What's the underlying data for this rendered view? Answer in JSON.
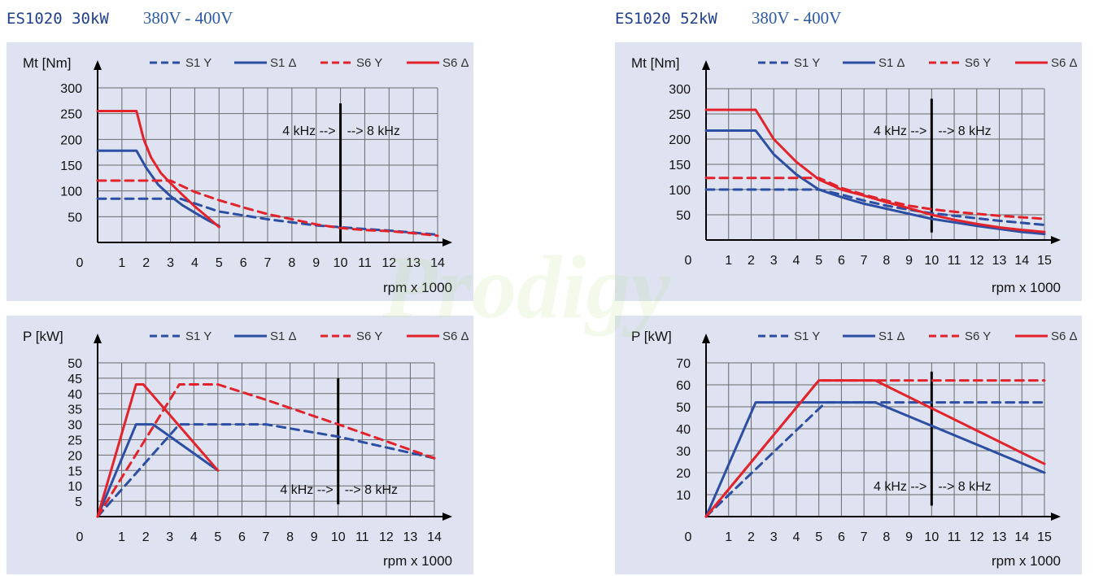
{
  "headings": [
    {
      "model": "ES1020  30kW",
      "voltage": "380V  -  400V"
    },
    {
      "model": "ES1020  52kW",
      "voltage": "380V  -  400V"
    }
  ],
  "watermark": "Prodigy",
  "colors": {
    "blue": "#2c4ea3",
    "red": "#e3232b",
    "panel": "#dfe3f1",
    "grid": "#6a6a6a",
    "axis": "#000000"
  },
  "chart_data": [
    {
      "type": "line",
      "ylabel": "Mt [Nm]",
      "xlabel": "rpm x 1000",
      "xticks": [
        "0",
        "1",
        "2",
        "3",
        "4",
        "5",
        "6",
        "7",
        "8",
        "9",
        "10",
        "11",
        "12",
        "13",
        "14"
      ],
      "yticks": [
        "50",
        "100",
        "150",
        "200",
        "250",
        "300"
      ],
      "xlim": [
        0,
        14
      ],
      "ylim": [
        0,
        300
      ],
      "xgrid_max": 14,
      "annotation": {
        "left": "4 kHz -->",
        "right": "--> 8 kHz",
        "x": 10,
        "y_top": 270,
        "y_bottom": 0,
        "label_y": 218
      },
      "legend": [
        "S1  Y",
        "S1  Δ",
        "S6  Y",
        "S6  Δ"
      ],
      "series": [
        {
          "name": "S1  Y",
          "color": "blue",
          "dash": true,
          "points": [
            [
              0,
              85
            ],
            [
              3.4,
              85
            ],
            [
              5,
              60
            ],
            [
              7,
              45
            ],
            [
              9,
              33
            ],
            [
              11,
              26
            ],
            [
              12,
              23
            ],
            [
              14,
              15
            ]
          ]
        },
        {
          "name": "S1  Δ",
          "color": "blue",
          "dash": false,
          "points": [
            [
              0,
              178
            ],
            [
              1.6,
              178
            ],
            [
              2,
              145
            ],
            [
              2.5,
              112
            ],
            [
              3,
              90
            ],
            [
              3.5,
              72
            ],
            [
              4,
              58
            ],
            [
              4.5,
              44
            ],
            [
              5,
              32
            ]
          ]
        },
        {
          "name": "S6  Y",
          "color": "red",
          "dash": true,
          "points": [
            [
              0,
              120
            ],
            [
              3,
              120
            ],
            [
              4,
              98
            ],
            [
              5,
              82
            ],
            [
              6,
              68
            ],
            [
              7,
              55
            ],
            [
              8,
              45
            ],
            [
              9,
              35
            ],
            [
              10,
              28
            ],
            [
              11,
              24
            ],
            [
              12,
              22
            ],
            [
              13,
              18
            ],
            [
              14,
              13
            ]
          ]
        },
        {
          "name": "S6  Δ",
          "color": "red",
          "dash": false,
          "points": [
            [
              0,
              255
            ],
            [
              1.6,
              255
            ],
            [
              1.9,
              200
            ],
            [
              2.2,
              165
            ],
            [
              2.6,
              135
            ],
            [
              3,
              115
            ],
            [
              3.5,
              92
            ],
            [
              4,
              70
            ],
            [
              4.5,
              50
            ],
            [
              5,
              30
            ]
          ]
        }
      ]
    },
    {
      "type": "line",
      "ylabel": "Mt [Nm]",
      "xlabel": "rpm x 1000",
      "xticks": [
        "0",
        "1",
        "2",
        "3",
        "4",
        "5",
        "6",
        "7",
        "8",
        "9",
        "10",
        "11",
        "12",
        "13",
        "14",
        "15"
      ],
      "yticks": [
        "50",
        "100",
        "150",
        "200",
        "250",
        "300"
      ],
      "xlim": [
        0,
        15
      ],
      "ylim": [
        0,
        300
      ],
      "xgrid_max": 15,
      "annotation": {
        "left": "4 kHz -->",
        "right": "--> 8 kHz",
        "x": 10,
        "y_top": 280,
        "y_bottom": 15,
        "label_y": 218
      },
      "legend": [
        "S1  Y",
        "S1  Δ",
        "S6  Y",
        "S6  Δ"
      ],
      "series": [
        {
          "name": "S1  Y",
          "color": "blue",
          "dash": true,
          "points": [
            [
              0,
              100
            ],
            [
              5,
              100
            ],
            [
              6,
              90
            ],
            [
              7,
              78
            ],
            [
              8,
              68
            ],
            [
              9,
              60
            ],
            [
              10,
              53
            ],
            [
              11,
              48
            ],
            [
              12,
              43
            ],
            [
              13,
              38
            ],
            [
              14,
              34
            ],
            [
              15,
              30
            ]
          ]
        },
        {
          "name": "S1  Δ",
          "color": "blue",
          "dash": false,
          "points": [
            [
              0,
              217
            ],
            [
              2.2,
              217
            ],
            [
              3,
              170
            ],
            [
              4,
              130
            ],
            [
              5,
              100
            ],
            [
              6,
              85
            ],
            [
              7,
              72
            ],
            [
              8,
              62
            ],
            [
              9,
              52
            ],
            [
              10,
              42
            ],
            [
              11,
              35
            ],
            [
              12,
              28
            ],
            [
              13,
              22
            ],
            [
              14,
              16
            ],
            [
              15,
              12
            ]
          ]
        },
        {
          "name": "S6  Y",
          "color": "red",
          "dash": true,
          "points": [
            [
              0,
              123
            ],
            [
              5,
              123
            ],
            [
              6,
              103
            ],
            [
              7,
              90
            ],
            [
              8,
              78
            ],
            [
              9,
              68
            ],
            [
              10,
              61
            ],
            [
              11,
              56
            ],
            [
              12,
              52
            ],
            [
              13,
              48
            ],
            [
              14,
              45
            ],
            [
              15,
              42
            ]
          ]
        },
        {
          "name": "S6  Δ",
          "color": "red",
          "dash": false,
          "points": [
            [
              0,
              258
            ],
            [
              2.2,
              258
            ],
            [
              3,
              200
            ],
            [
              4,
              155
            ],
            [
              5,
              120
            ],
            [
              6,
              100
            ],
            [
              7,
              88
            ],
            [
              8,
              75
            ],
            [
              9,
              63
            ],
            [
              10,
              50
            ],
            [
              11,
              40
            ],
            [
              12,
              32
            ],
            [
              13,
              25
            ],
            [
              14,
              20
            ],
            [
              15,
              16
            ]
          ]
        }
      ]
    },
    {
      "type": "line",
      "ylabel": "P [kW]",
      "xlabel": "rpm x 1000",
      "xticks": [
        "0",
        "1",
        "2",
        "3",
        "4",
        "5",
        "6",
        "7",
        "8",
        "9",
        "10",
        "11",
        "12",
        "13",
        "14"
      ],
      "yticks": [
        "5",
        "10",
        "15",
        "20",
        "25",
        "30",
        "35",
        "40",
        "45",
        "50"
      ],
      "xlim": [
        0,
        14
      ],
      "ylim": [
        0,
        50
      ],
      "xgrid_max": 14,
      "annotation": {
        "left": "4 kHz -->",
        "right": "--> 8 kHz",
        "x": 10,
        "y_top": 45,
        "y_bottom": 4,
        "label_y": 9
      },
      "legend": [
        "S1  Y",
        "S1  Δ",
        "S6  Y",
        "S6  Δ"
      ],
      "series": [
        {
          "name": "S1  Y",
          "color": "blue",
          "dash": true,
          "points": [
            [
              0,
              0
            ],
            [
              3.4,
              30
            ],
            [
              5,
              30
            ],
            [
              7,
              30
            ],
            [
              10,
              26
            ],
            [
              14,
              19
            ]
          ]
        },
        {
          "name": "S1  Δ",
          "color": "blue",
          "dash": false,
          "points": [
            [
              0,
              0
            ],
            [
              1.6,
              30
            ],
            [
              2.3,
              30
            ],
            [
              5,
              15
            ]
          ]
        },
        {
          "name": "S6  Y",
          "color": "red",
          "dash": true,
          "points": [
            [
              0,
              0
            ],
            [
              3.4,
              43
            ],
            [
              5,
              43
            ],
            [
              7,
              38
            ],
            [
              10,
              30
            ],
            [
              14,
              19
            ]
          ]
        },
        {
          "name": "S6  Δ",
          "color": "red",
          "dash": false,
          "points": [
            [
              0,
              0
            ],
            [
              1.6,
              43
            ],
            [
              1.9,
              43
            ],
            [
              5,
              15
            ]
          ]
        }
      ]
    },
    {
      "type": "line",
      "ylabel": "P [kW]",
      "xlabel": "rpm x 1000",
      "xticks": [
        "0",
        "1",
        "2",
        "3",
        "4",
        "5",
        "6",
        "7",
        "8",
        "9",
        "10",
        "11",
        "12",
        "13",
        "14",
        "15"
      ],
      "yticks": [
        "10",
        "20",
        "30",
        "40",
        "50",
        "60",
        "70"
      ],
      "xlim": [
        0,
        15
      ],
      "ylim": [
        0,
        70
      ],
      "xgrid_max": 15,
      "annotation": {
        "left": "4 kHz -->",
        "right": "--> 8 kHz",
        "x": 10,
        "y_top": 66,
        "y_bottom": 5,
        "label_y": 14
      },
      "legend": [
        "S1  Y",
        "S1  Δ",
        "S6  Y",
        "S6  Δ"
      ],
      "series": [
        {
          "name": "S1  Y",
          "color": "blue",
          "dash": true,
          "points": [
            [
              0,
              0
            ],
            [
              5.3,
              52
            ],
            [
              15,
              52
            ]
          ]
        },
        {
          "name": "S1  Δ",
          "color": "blue",
          "dash": false,
          "points": [
            [
              0,
              0
            ],
            [
              2.2,
              52
            ],
            [
              7.5,
              52
            ],
            [
              15,
              20
            ]
          ]
        },
        {
          "name": "S6  Y",
          "color": "red",
          "dash": true,
          "points": [
            [
              0,
              0
            ],
            [
              5,
              62
            ],
            [
              15,
              62
            ]
          ]
        },
        {
          "name": "S6  Δ",
          "color": "red",
          "dash": false,
          "points": [
            [
              0,
              0
            ],
            [
              5,
              62
            ],
            [
              7.5,
              62
            ],
            [
              15,
              24
            ]
          ]
        }
      ]
    }
  ]
}
